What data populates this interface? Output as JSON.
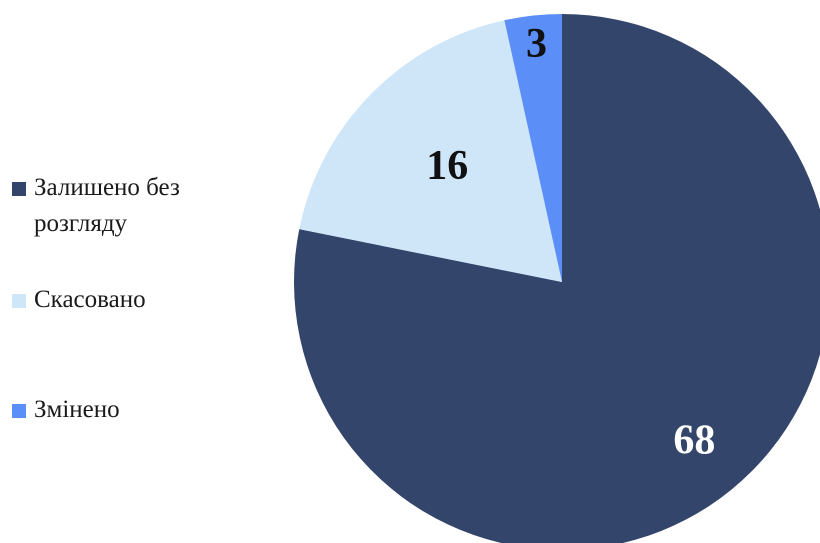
{
  "chart_data": {
    "type": "pie",
    "categories": [
      "Залишено без розгляду",
      "Скасовано",
      "Змінено"
    ],
    "values": [
      68,
      16,
      3
    ],
    "colors": [
      "#34456b",
      "#cfe6f8",
      "#5b8ef7"
    ],
    "label_colors": [
      "#ffffff",
      "#111111",
      "#111111"
    ],
    "legend_position": "left"
  }
}
